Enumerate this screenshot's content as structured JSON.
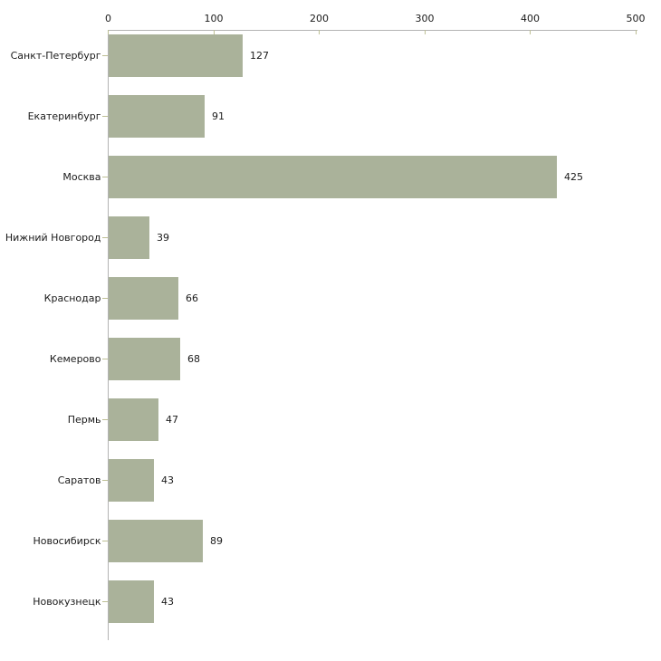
{
  "chart_data": {
    "type": "bar",
    "orientation": "horizontal",
    "title": "",
    "xlabel": "",
    "ylabel": "",
    "categories": [
      "Санкт-Петербург",
      "Екатеринбург",
      "Москва",
      "Нижний Новгород",
      "Краснодар",
      "Кемерово",
      "Пермь",
      "Саратов",
      "Новосибирск",
      "Новокузнецк"
    ],
    "values": [
      127,
      91,
      425,
      39,
      66,
      68,
      47,
      43,
      89,
      43
    ],
    "xlim": [
      0,
      500
    ],
    "x_ticks": [
      0,
      100,
      200,
      300,
      400,
      500
    ],
    "axis_position": "top",
    "grid": false,
    "legend": false,
    "data_labels": true,
    "colors": {
      "bar_fill": "#aab29a",
      "axis_line": "#b3b3b3",
      "tick_mark": "#bdbf94",
      "text": "#1a1a1a",
      "background": "#ffffff"
    }
  }
}
